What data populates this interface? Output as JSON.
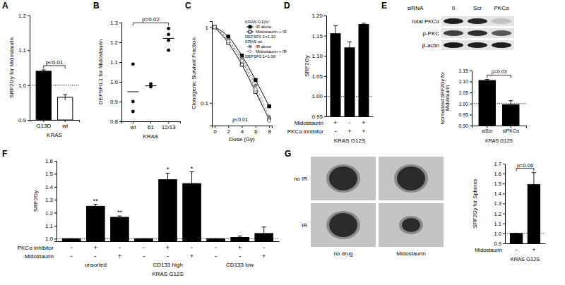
{
  "chart_data": [
    {
      "type": "bar",
      "title": "A",
      "categories": [
        "G13D",
        "wt"
      ],
      "values": [
        1.04,
        0.965
      ],
      "errors": [
        0.004,
        0.008
      ],
      "colors": [
        "#000000",
        "#ffffff"
      ],
      "xlabel": "KRAS",
      "ylabel": "SRF2Gy for Midostaurin",
      "ylim": [
        0.9,
        1.2
      ],
      "yticks": [
        0.9,
        {
          "value": 1,
          "label": "1.0"
        },
        1.1,
        1.2
      ],
      "hline": 1,
      "annotations": [
        "p<0.01"
      ]
    },
    {
      "type": "scatter",
      "title": "B",
      "categories": [
        "wt",
        "61",
        "12/13"
      ],
      "values": [
        [
          1.09,
          0.9,
          0.85
        ],
        [
          0.99,
          0.975,
          0.98
        ],
        [
          1.27,
          1.24,
          1.21,
          1.16
        ]
      ],
      "means": [
        0.95,
        0.98,
        1.22
      ],
      "color": "#000000",
      "xlabel": "KRAS",
      "ylabel": "DEFSF0.1 for Midostaurin",
      "ylim": [
        0.8,
        1.3
      ],
      "yticks": [
        0.8,
        0.9,
        {
          "value": 1,
          "label": "1.0"
        },
        1.1,
        1.2,
        1.3
      ],
      "annotations": [
        "p=0.02"
      ]
    },
    {
      "type": "line",
      "title": "C",
      "log": "y",
      "x": [
        0,
        2,
        4,
        6,
        8
      ],
      "series": [
        {
          "name": "IR alone",
          "color": "#000000",
          "marker": "square",
          "line_style": "solid",
          "values": [
            1,
            0.75,
            0.42,
            0.2,
            0.09
          ]
        },
        {
          "name": "Midostaurin + IR",
          "color": "#000000",
          "marker": "open-square",
          "line_style": "solid",
          "values": [
            1,
            0.62,
            0.32,
            0.14,
            0.06
          ]
        },
        {
          "name": "IR alone",
          "color": "#7f7f7f",
          "marker": "circle",
          "line_style": "dashed",
          "values": [
            1,
            0.68,
            0.38,
            0.17,
            0.065
          ]
        },
        {
          "name": "Midostaurin + IR",
          "color": "#7f7f7f",
          "marker": "open-circle",
          "line_style": "dashed",
          "values": [
            1,
            0.65,
            0.36,
            0.15,
            0.058
          ]
        }
      ],
      "xlabel": "Dose (Gy)",
      "ylabel": "Clonogenic Survival Fraction",
      "xlim": [
        -0.4,
        8.4
      ],
      "xticks": [
        0,
        2,
        4,
        6,
        8
      ],
      "ylim": [
        0.05,
        1.2
      ],
      "yticks": [
        0.1,
        1
      ],
      "legend": "top-right",
      "annotations": [
        "KRAS G12V:",
        "DEFSF0.1=1.10",
        "KRAS wt:",
        "DEFSF0.1=1.00",
        "p<0.01"
      ]
    },
    {
      "type": "bar",
      "title": "D",
      "categories": [
        null,
        null,
        null
      ],
      "values": [
        1.155,
        1.12,
        1.178
      ],
      "errors": [
        0.02,
        0.015,
        0.003
      ],
      "color": "#000000",
      "ylabel": "SRF2Gy",
      "xlabel": "KRAS G12S",
      "ylim": [
        0.95,
        1.2
      ],
      "yticks": [
        0.95,
        {
          "value": 1,
          "label": "1.00"
        },
        1.05,
        {
          "value": 1.1,
          "label": "1.10"
        },
        1.15,
        {
          "value": 1.2,
          "label": "1.20"
        }
      ],
      "hline": 1,
      "conditions": [
        {
          "name": "Midostaurin",
          "values": [
            "+",
            "-",
            "+"
          ]
        },
        {
          "name": "PKCα inhibitor",
          "values": [
            "-",
            "+",
            "+"
          ]
        }
      ]
    },
    {
      "type": "bar",
      "title": "E",
      "blot": {
        "header": "siRNA",
        "lanes": [
          "0",
          "Scr",
          "PKCα"
        ],
        "rows": [
          "total PKCα",
          "p-PKC",
          "β-actin"
        ]
      },
      "categories": [
        "siScr",
        "siPKCα"
      ],
      "values": [
        1.105,
        0.995
      ],
      "errors": [
        0.005,
        0.018
      ],
      "color": "#000000",
      "ylabel": "Normalized SRF2Gy for Midostaurin",
      "xlabel": "KRAS G12S",
      "ylim": [
        0.9,
        1.15
      ],
      "yticks": [
        {
          "value": 0.9,
          "label": "0.90"
        },
        0.95,
        {
          "value": 1,
          "label": "1.00"
        },
        1.05,
        {
          "value": 1.1,
          "label": "1.10"
        },
        1.15
      ],
      "hline": 1,
      "annotations": [
        "p=0.03"
      ]
    },
    {
      "type": "bar",
      "title": "F",
      "categories": [
        null,
        null,
        null,
        null,
        null,
        null,
        null,
        null,
        null
      ],
      "values": [
        1,
        1.25,
        1.165,
        1,
        1.455,
        1.425,
        1,
        1.01,
        1.04
      ],
      "errors": [
        0,
        0.015,
        0.01,
        0,
        0.05,
        0.09,
        0,
        0.01,
        0.05
      ],
      "stars": [
        null,
        "**",
        "**",
        null,
        "*",
        "*",
        null,
        null,
        null
      ],
      "color": "#000000",
      "ylabel": "SRF2Gy",
      "xlabel": "KRAS G12S",
      "ylim": [
        0.98,
        1.6
      ],
      "yticks": [
        {
          "value": 1,
          "label": "1.0"
        },
        1.1,
        1.2,
        1.3,
        1.4,
        1.5,
        1.6
      ],
      "hline": 1,
      "conditions": [
        {
          "name": "PKCα inhibitor",
          "values": [
            "-",
            "+",
            "-",
            "-",
            "+",
            "-",
            "-",
            "+",
            "-"
          ]
        },
        {
          "name": "Midostaurin",
          "values": [
            "-",
            "-",
            "+",
            "-",
            "-",
            "+",
            "-",
            "-",
            "+"
          ]
        }
      ],
      "groups": [
        "unsorted",
        "CD133 high",
        "CD133 low"
      ]
    },
    {
      "type": "bar",
      "title": "G",
      "images": {
        "row_labels": [
          "no IR",
          "IR"
        ],
        "column_labels": [
          "no drug",
          "Midostaurin"
        ]
      },
      "categories": [
        null,
        null
      ],
      "values": [
        1,
        1.49
      ],
      "errors": [
        0,
        0.12
      ],
      "color": "#000000",
      "ylabel": "SRF2Gy for Spheres",
      "xlabel": "KRAS G12S",
      "ylim": [
        0.9,
        1.7
      ],
      "yticks": [
        0.9,
        {
          "value": 1,
          "label": "1.0"
        },
        1.1,
        1.2,
        1.3,
        1.4,
        1.5,
        1.6,
        1.7
      ],
      "hline": 1,
      "annotations": [
        "p=0.06"
      ],
      "conditions": [
        {
          "name": "Midostaurin",
          "values": [
            "-",
            "+"
          ]
        }
      ]
    }
  ]
}
